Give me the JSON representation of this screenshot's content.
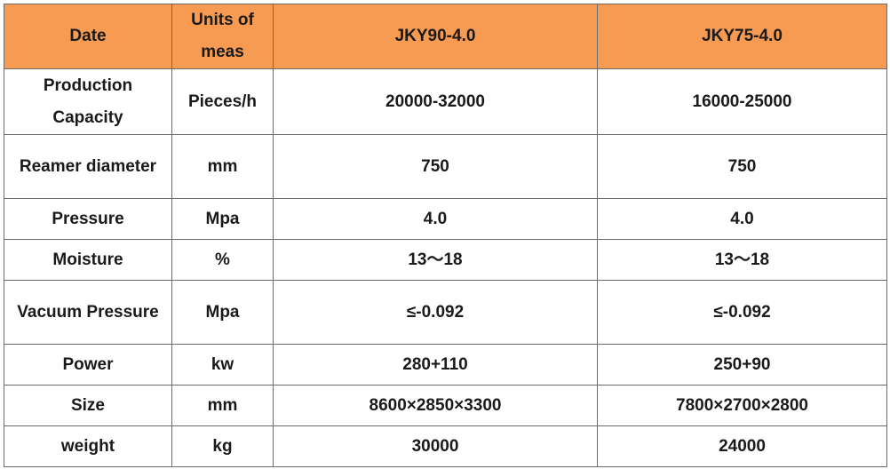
{
  "table": {
    "header": [
      "Date",
      "Units of meas",
      "JKY90-4.0",
      "JKY75-4.0"
    ],
    "rows": [
      [
        "Production Capacity",
        "Pieces/h",
        "20000-32000",
        "16000-25000"
      ],
      [
        "Reamer diameter",
        "mm",
        "750",
        "750"
      ],
      [
        "Pressure",
        "Mpa",
        "4.0",
        "4.0"
      ],
      [
        "Moisture",
        "%",
        "13～18",
        "13～18"
      ],
      [
        "Vacuum Pressure",
        "Mpa",
        "≤-0.092",
        "≤-0.092"
      ],
      [
        "Power",
        "kw",
        "280+110",
        "250+90"
      ],
      [
        "Size",
        "mm",
        "8600×2850×3300",
        "7800×2700×2800"
      ],
      [
        "weight",
        "kg",
        "30000",
        "24000"
      ]
    ]
  }
}
